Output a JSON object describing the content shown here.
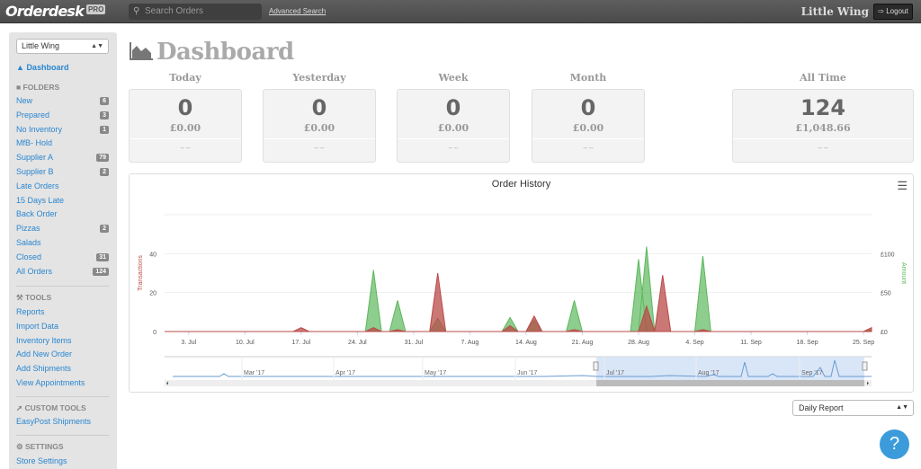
{
  "topbar": {
    "logo": "Orderdesk",
    "badge": "PRO",
    "search_placeholder": "Search Orders",
    "advanced_search": "Advanced Search",
    "store_name": "Little Wing",
    "logout": "Logout"
  },
  "sidebar": {
    "store_select": "Little Wing",
    "dashboard": "Dashboard",
    "folders_heading": "FOLDERS",
    "folders": [
      {
        "label": "New",
        "count": "6"
      },
      {
        "label": "Prepared",
        "count": "3"
      },
      {
        "label": "No Inventory",
        "count": "1"
      },
      {
        "label": "MfB- Hold",
        "count": ""
      },
      {
        "label": "Supplier A",
        "count": "79"
      },
      {
        "label": "Supplier B",
        "count": "2"
      },
      {
        "label": "Late Orders",
        "count": ""
      },
      {
        "label": "15 Days Late",
        "count": ""
      },
      {
        "label": "Back Order",
        "count": ""
      },
      {
        "label": "Pizzas",
        "count": "2"
      },
      {
        "label": "Salads",
        "count": ""
      },
      {
        "label": "Closed",
        "count": "31"
      },
      {
        "label": "All Orders",
        "count": "124"
      }
    ],
    "tools_heading": "TOOLS",
    "tools": [
      "Reports",
      "Import Data",
      "Inventory Items",
      "Add New Order",
      "Add Shipments",
      "View Appointments"
    ],
    "custom_tools_heading": "CUSTOM TOOLS",
    "custom_tools": [
      "EasyPost Shipments"
    ],
    "settings_heading": "SETTINGS",
    "settings": [
      "Store Settings"
    ]
  },
  "main": {
    "title": "Dashboard",
    "stats": [
      {
        "label": "Today",
        "count": "0",
        "amount": "£0.00",
        "footer": "-- --"
      },
      {
        "label": "Yesterday",
        "count": "0",
        "amount": "£0.00",
        "footer": "-- --"
      },
      {
        "label": "Week",
        "count": "0",
        "amount": "£0.00",
        "footer": "-- --"
      },
      {
        "label": "Month",
        "count": "0",
        "amount": "£0.00",
        "footer": "-- --"
      },
      {
        "label": "All Time",
        "count": "124",
        "amount": "£1,048.66",
        "footer": "-- --"
      }
    ],
    "report_select": "Daily Report",
    "help": "?"
  },
  "colors": {
    "transactions": "#b94a48",
    "amount": "#5cb85c",
    "link": "#2a86d0",
    "navigator": "#6b9bd1"
  },
  "chart_data": {
    "type": "area",
    "title": "Order History",
    "xrange": [
      "2017-06-30",
      "2017-09-26"
    ],
    "xticks": [
      "3. Jul",
      "10. Jul",
      "17. Jul",
      "24. Jul",
      "31. Jul",
      "7. Aug",
      "14. Aug",
      "21. Aug",
      "28. Aug",
      "4. Sep",
      "11. Sep",
      "18. Sep",
      "25. Sep"
    ],
    "y_left": {
      "label": "Transactions",
      "ticks": [
        "0",
        "20",
        "40"
      ],
      "range": [
        0,
        60
      ]
    },
    "y_right": {
      "label": "Amount",
      "ticks": [
        "£0",
        "£50",
        "£100"
      ],
      "range": [
        0,
        150
      ]
    },
    "series": [
      {
        "name": "Transactions",
        "axis": "left",
        "points": [
          [
            "2017-07-17",
            2
          ],
          [
            "2017-07-26",
            2
          ],
          [
            "2017-07-29",
            1
          ],
          [
            "2017-08-03",
            30
          ],
          [
            "2017-08-12",
            3
          ],
          [
            "2017-08-15",
            8
          ],
          [
            "2017-08-20",
            1
          ],
          [
            "2017-08-29",
            13
          ],
          [
            "2017-08-31",
            29
          ],
          [
            "2017-09-05",
            1
          ],
          [
            "2017-09-26",
            2
          ]
        ]
      },
      {
        "name": "Amount",
        "axis": "right",
        "points": [
          [
            "2017-07-26",
            79
          ],
          [
            "2017-07-29",
            40
          ],
          [
            "2017-08-03",
            17
          ],
          [
            "2017-08-12",
            18
          ],
          [
            "2017-08-15",
            15
          ],
          [
            "2017-08-20",
            40
          ],
          [
            "2017-08-28",
            93
          ],
          [
            "2017-08-29",
            109
          ],
          [
            "2017-09-05",
            97
          ],
          [
            "2017-09-26",
            2
          ]
        ]
      }
    ],
    "navigator": {
      "labels": [
        "Mar '17",
        "Apr '17",
        "May '17",
        "Jun '17",
        "Jul '17",
        "Aug '17",
        "Sep '17"
      ]
    }
  }
}
